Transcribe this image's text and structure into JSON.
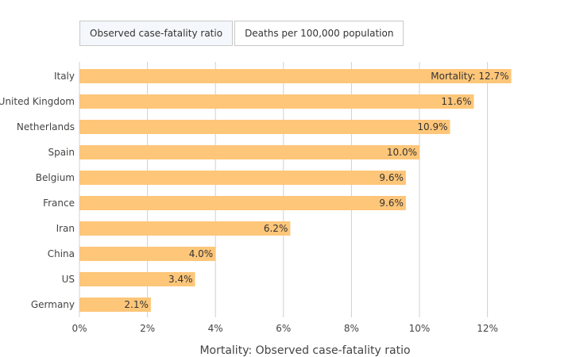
{
  "tabs": [
    {
      "label": "Observed case-fatality ratio",
      "active": true
    },
    {
      "label": "Deaths per 100,000 population",
      "active": false
    }
  ],
  "chart_data": {
    "type": "bar",
    "orientation": "horizontal",
    "categories": [
      "Italy",
      "United Kingdom",
      "Netherlands",
      "Spain",
      "Belgium",
      "France",
      "Iran",
      "China",
      "US",
      "Germany"
    ],
    "values": [
      12.7,
      11.6,
      10.9,
      10.0,
      9.6,
      9.6,
      6.2,
      4.0,
      3.4,
      2.1
    ],
    "value_labels": [
      "Mortality: 12.7%",
      "11.6%",
      "10.9%",
      "10.0%",
      "9.6%",
      "9.6%",
      "6.2%",
      "4.0%",
      "3.4%",
      "2.1%"
    ],
    "xticks": [
      0,
      2,
      4,
      6,
      8,
      10,
      12
    ],
    "xtick_labels": [
      "0%",
      "2%",
      "4%",
      "6%",
      "8%",
      "10%",
      "12%"
    ],
    "xlim": [
      0,
      14
    ],
    "xlabel": "Mortality: Observed case-fatality ratio",
    "ylabel": "",
    "title": "",
    "grid": true,
    "bar_color": "#fec679",
    "grid_color": "#d0d0d0"
  }
}
